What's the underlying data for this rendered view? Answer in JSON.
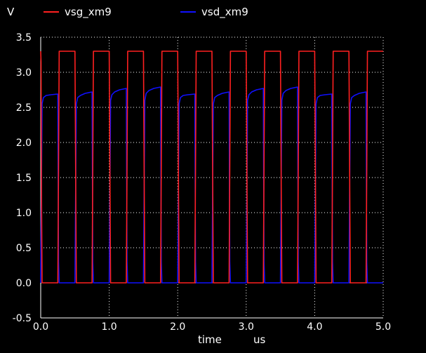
{
  "chart_data": {
    "type": "line",
    "ylabel": "V",
    "xlabel": "time",
    "xunit": "us",
    "xlim": [
      0.0,
      5.0
    ],
    "ylim": [
      -0.5,
      3.5
    ],
    "xticks": [
      "0.0",
      "1.0",
      "2.0",
      "3.0",
      "4.0",
      "5.0"
    ],
    "yticks": [
      "3.5",
      "3.0",
      "2.5",
      "2.0",
      "1.5",
      "1.0",
      "0.5",
      "0.0",
      "-0.5"
    ],
    "xtick_values": [
      0,
      1,
      2,
      3,
      4,
      5
    ],
    "ytick_values": [
      3.5,
      3.0,
      2.5,
      2.0,
      1.5,
      1.0,
      0.5,
      0.0,
      -0.5
    ],
    "grid": true,
    "legend": "top",
    "series": [
      {
        "name": "vsg_xm9",
        "color": "#ff2020",
        "x": [
          0.0,
          0.005,
          0.01,
          0.02,
          0.25,
          0.26,
          0.27,
          0.5,
          0.51,
          0.52,
          0.75,
          0.76,
          0.77,
          1.0,
          1.01,
          1.02,
          1.25,
          1.26,
          1.27,
          1.5,
          1.51,
          1.52,
          1.75,
          1.76,
          1.77,
          2.0,
          2.01,
          2.02,
          2.25,
          2.26,
          2.27,
          2.5,
          2.51,
          2.52,
          2.75,
          2.76,
          2.77,
          3.0,
          3.01,
          3.02,
          3.25,
          3.26,
          3.27,
          3.5,
          3.51,
          3.52,
          3.75,
          3.76,
          3.77,
          4.0,
          4.01,
          4.02,
          4.25,
          4.26,
          4.27,
          4.5,
          4.51,
          4.52,
          4.75,
          4.76,
          4.77,
          5.0
        ],
        "values": [
          3.3,
          3.15,
          1.5,
          0.0,
          0.0,
          1.6,
          3.3,
          3.3,
          1.6,
          0.0,
          0.0,
          1.6,
          3.3,
          3.3,
          1.6,
          0.0,
          0.0,
          1.6,
          3.3,
          3.3,
          1.6,
          0.0,
          0.0,
          1.6,
          3.3,
          3.3,
          1.6,
          0.0,
          0.0,
          1.6,
          3.3,
          3.3,
          1.6,
          0.0,
          0.0,
          1.6,
          3.3,
          3.3,
          1.6,
          0.0,
          0.0,
          1.6,
          3.3,
          3.3,
          1.6,
          0.0,
          0.0,
          1.6,
          3.3,
          3.3,
          1.6,
          0.0,
          0.0,
          1.6,
          3.3,
          3.3,
          1.6,
          0.0,
          0.0,
          1.6,
          3.3,
          3.3
        ]
      },
      {
        "name": "vsd_xm9",
        "color": "#1010ff",
        "x": [
          0.0,
          0.01,
          0.02,
          0.04,
          0.08,
          0.15,
          0.25,
          0.26,
          0.27,
          0.5,
          0.51,
          0.52,
          0.54,
          0.58,
          0.65,
          0.75,
          0.76,
          0.77,
          1.0,
          1.01,
          1.02,
          1.04,
          1.08,
          1.15,
          1.25,
          1.26,
          1.27,
          1.5,
          1.51,
          1.52,
          1.54,
          1.58,
          1.65,
          1.75,
          1.76,
          1.77,
          2.0,
          2.01,
          2.02,
          2.04,
          2.08,
          2.15,
          2.25,
          2.26,
          2.27,
          2.5,
          2.51,
          2.52,
          2.54,
          2.58,
          2.65,
          2.75,
          2.76,
          2.77,
          3.0,
          3.01,
          3.02,
          3.04,
          3.08,
          3.15,
          3.25,
          3.26,
          3.27,
          3.5,
          3.51,
          3.52,
          3.54,
          3.58,
          3.65,
          3.75,
          3.76,
          3.77,
          4.0,
          4.01,
          4.02,
          4.04,
          4.08,
          4.15,
          4.25,
          4.26,
          4.27,
          4.5,
          4.51,
          4.52,
          4.54,
          4.58,
          4.65,
          4.75,
          4.76,
          4.77,
          5.0
        ],
        "values": [
          0.0,
          1.3,
          2.55,
          2.64,
          2.67,
          2.68,
          2.69,
          0.3,
          0.0,
          0.0,
          1.3,
          2.55,
          2.64,
          2.67,
          2.7,
          2.72,
          0.3,
          0.0,
          0.0,
          1.3,
          2.6,
          2.68,
          2.72,
          2.75,
          2.77,
          0.3,
          0.0,
          0.0,
          1.3,
          2.6,
          2.7,
          2.74,
          2.77,
          2.79,
          0.3,
          0.0,
          0.0,
          1.3,
          2.55,
          2.64,
          2.67,
          2.68,
          2.69,
          0.3,
          0.0,
          0.0,
          1.3,
          2.55,
          2.64,
          2.67,
          2.7,
          2.72,
          0.3,
          0.0,
          0.0,
          1.3,
          2.6,
          2.68,
          2.72,
          2.75,
          2.77,
          0.3,
          0.0,
          0.0,
          1.3,
          2.6,
          2.7,
          2.74,
          2.77,
          2.79,
          0.3,
          0.0,
          0.0,
          1.3,
          2.55,
          2.64,
          2.67,
          2.68,
          2.69,
          0.3,
          0.0,
          0.0,
          1.3,
          2.55,
          2.64,
          2.67,
          2.7,
          2.72,
          0.3,
          0.0,
          0.0
        ]
      }
    ]
  },
  "colors": {
    "background": "#000000",
    "grid": "#ffffff",
    "text": "#ffffff"
  }
}
